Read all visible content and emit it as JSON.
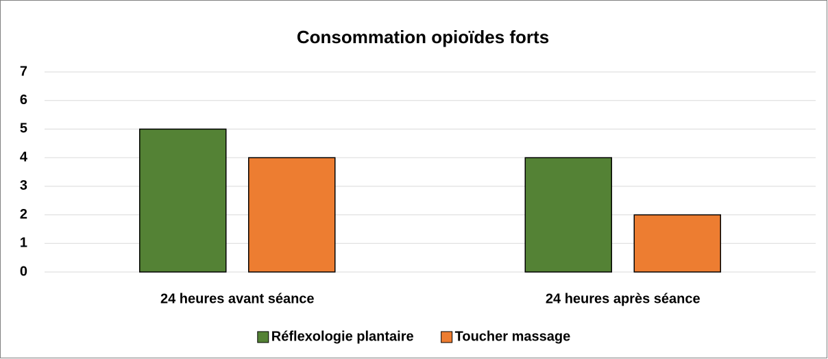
{
  "chart_data": {
    "type": "bar",
    "title": "Consommation opioïdes forts",
    "categories": [
      "24 heures avant séance",
      "24 heures après séance"
    ],
    "series": [
      {
        "name": "Réflexologie plantaire",
        "color": "#548235",
        "values": [
          5,
          4
        ]
      },
      {
        "name": "Toucher massage",
        "color": "#ed7d31",
        "values": [
          4,
          2
        ]
      }
    ],
    "ylim": [
      0,
      7
    ],
    "yticks": [
      0,
      1,
      2,
      3,
      4,
      5,
      6,
      7
    ],
    "grid": true,
    "legend": "bottom"
  }
}
